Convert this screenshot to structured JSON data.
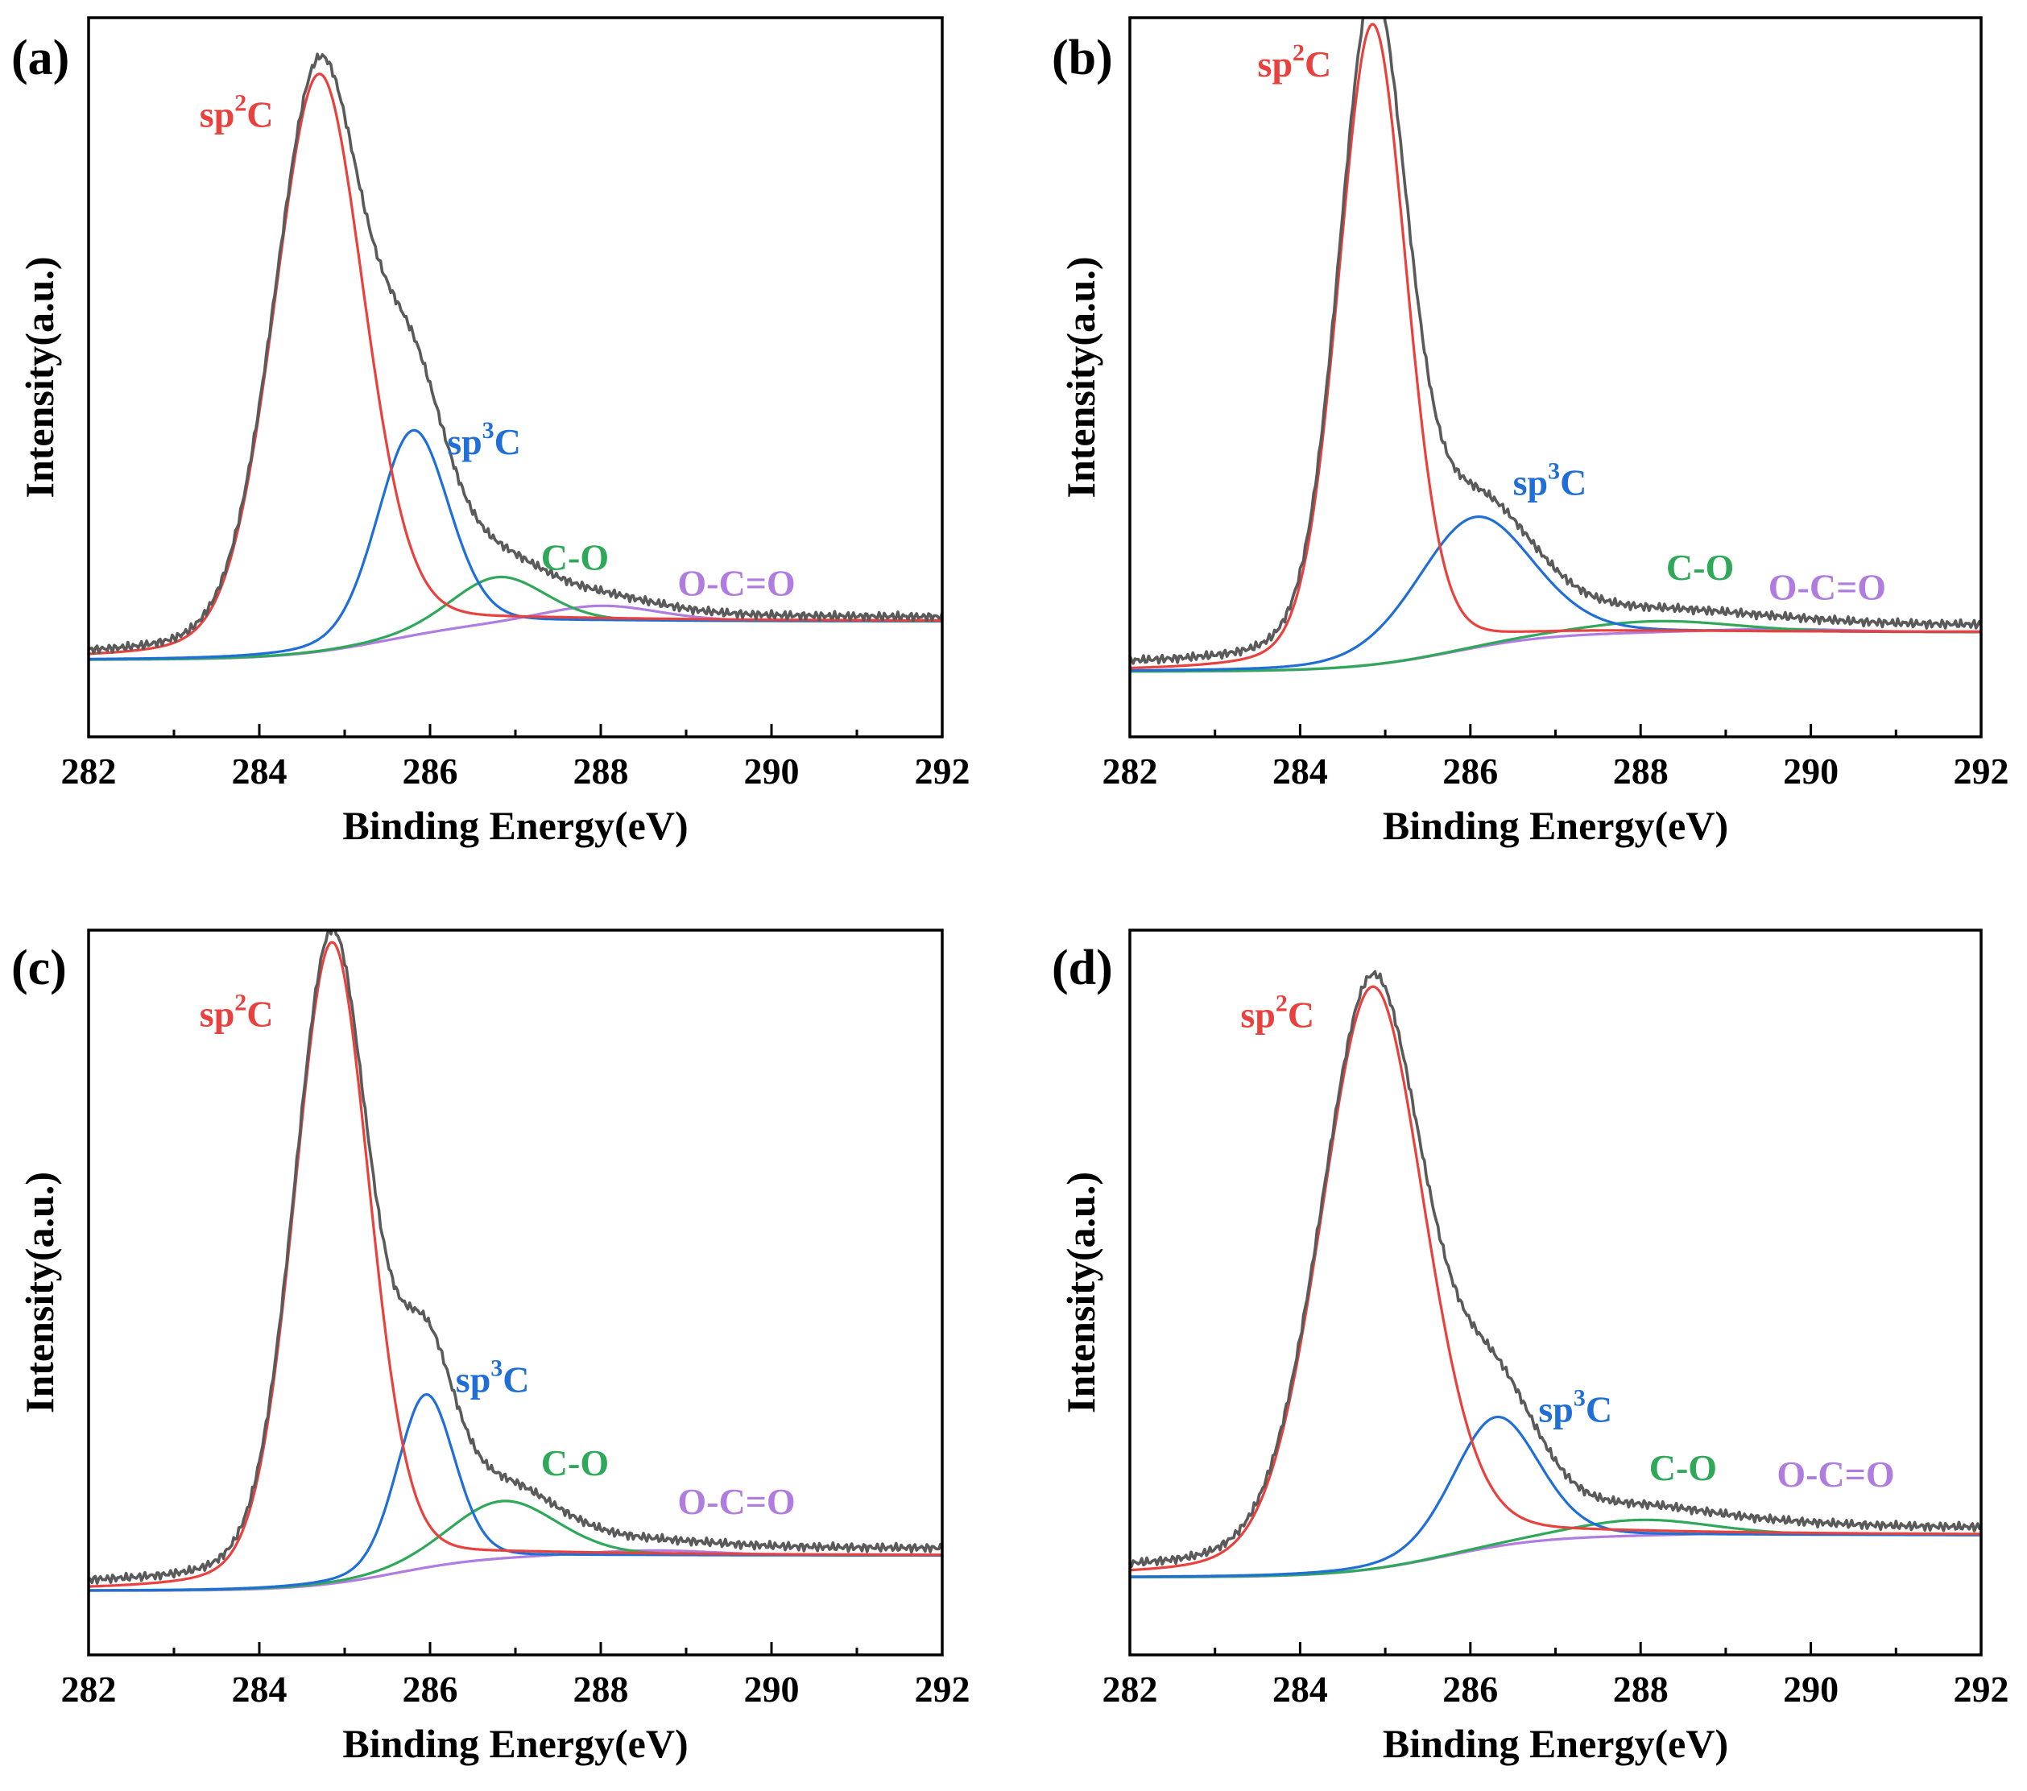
{
  "figure": {
    "colors": {
      "envelope": "#5a5a5a",
      "sp2": "#e8413e",
      "sp3": "#1f6fd6",
      "co": "#2fa85a",
      "oco": "#b07ce0"
    }
  },
  "chart_data": [
    {
      "panel_label": "(a)",
      "type": "line",
      "xlabel": "Binding Energy(eV)",
      "ylabel": "Intensity(a.u.)",
      "xlim": [
        282,
        292
      ],
      "ylim": [
        -0.12,
        1.0
      ],
      "xticks": [
        "282",
        "284",
        "286",
        "288",
        "290",
        "292"
      ],
      "peaks": [
        {
          "name": "sp2C",
          "label_main": "sp",
          "label_sup": "2",
          "label_tail": "C",
          "color": "#e8413e",
          "center": 284.7,
          "height": 0.9,
          "fwhm": 1.25,
          "label_at": [
            283.3,
            0.83
          ]
        },
        {
          "name": "sp3C",
          "label_main": "sp",
          "label_sup": "3",
          "label_tail": "C",
          "color": "#1f6fd6",
          "center": 285.8,
          "height": 0.32,
          "fwhm": 1.0,
          "label_at": [
            286.2,
            0.32
          ]
        },
        {
          "name": "C-O",
          "label_main": "C-O",
          "label_sup": "",
          "label_tail": "",
          "color": "#2fa85a",
          "center": 286.8,
          "height": 0.075,
          "fwhm": 1.3,
          "label_at": [
            287.3,
            0.14
          ]
        },
        {
          "name": "O-C=O",
          "label_main": "O-C=O",
          "label_sup": "",
          "label_tail": "",
          "color": "#b07ce0",
          "center": 288.0,
          "height": 0.025,
          "fwhm": 1.6,
          "label_at": [
            288.9,
            0.1
          ]
        }
      ],
      "background": {
        "low": 0.0,
        "high": 0.06,
        "center": 285.5,
        "width": 0.6
      },
      "envelope_tail": 0.005
    },
    {
      "panel_label": "(b)",
      "type": "line",
      "xlabel": "Binding Energy(eV)",
      "ylabel": "Intensity(a.u.)",
      "xlim": [
        282,
        292
      ],
      "ylim": [
        -0.1,
        1.0
      ],
      "xticks": [
        "282",
        "284",
        "286",
        "288",
        "290",
        "292"
      ],
      "peaks": [
        {
          "name": "sp2C",
          "label_main": "sp",
          "label_sup": "2",
          "label_tail": "C",
          "color": "#e8413e",
          "center": 284.85,
          "height": 0.98,
          "fwhm": 0.95,
          "label_at": [
            283.5,
            0.91
          ]
        },
        {
          "name": "sp3C",
          "label_main": "sp",
          "label_sup": "3",
          "label_tail": "C",
          "color": "#1f6fd6",
          "center": 286.05,
          "height": 0.2,
          "fwhm": 1.6,
          "label_at": [
            286.5,
            0.27
          ]
        },
        {
          "name": "C-O",
          "label_main": "C-O",
          "label_sup": "",
          "label_tail": "",
          "color": "#2fa85a",
          "center": 288.2,
          "height": 0.018,
          "fwhm": 2.2,
          "label_at": [
            288.3,
            0.14
          ]
        },
        {
          "name": "O-C=O",
          "label_main": "O-C=O",
          "label_sup": "",
          "label_tail": "",
          "color": "#b07ce0",
          "center": 289.6,
          "height": 0.005,
          "fwhm": 2.0,
          "label_at": [
            289.5,
            0.11
          ]
        }
      ],
      "background": {
        "low": 0.0,
        "high": 0.06,
        "center": 285.8,
        "width": 0.6
      },
      "envelope_tail": 0.01
    },
    {
      "panel_label": "(c)",
      "type": "line",
      "xlabel": "Binding Energy(eV)",
      "ylabel": "Intensity(a.u.)",
      "xlim": [
        282,
        292
      ],
      "ylim": [
        -0.1,
        1.03
      ],
      "xticks": [
        "282",
        "284",
        "286",
        "288",
        "290",
        "292"
      ],
      "peaks": [
        {
          "name": "sp2C",
          "label_main": "sp",
          "label_sup": "2",
          "label_tail": "C",
          "color": "#e8413e",
          "center": 284.85,
          "height": 1.0,
          "fwhm": 1.05,
          "label_at": [
            283.3,
            0.88
          ]
        },
        {
          "name": "sp3C",
          "label_main": "sp",
          "label_sup": "3",
          "label_tail": "C",
          "color": "#1f6fd6",
          "center": 285.95,
          "height": 0.27,
          "fwhm": 0.8,
          "label_at": [
            286.3,
            0.31
          ]
        },
        {
          "name": "C-O",
          "label_main": "C-O",
          "label_sup": "",
          "label_tail": "",
          "color": "#2fa85a",
          "center": 286.85,
          "height": 0.09,
          "fwhm": 1.5,
          "label_at": [
            287.3,
            0.18
          ]
        },
        {
          "name": "O-C=O",
          "label_main": "O-C=O",
          "label_sup": "",
          "label_tail": "",
          "color": "#b07ce0",
          "center": 288.6,
          "height": 0.008,
          "fwhm": 1.8,
          "label_at": [
            288.9,
            0.12
          ]
        }
      ],
      "background": {
        "low": 0.0,
        "high": 0.055,
        "center": 285.6,
        "width": 0.55
      },
      "envelope_tail": 0.01
    },
    {
      "panel_label": "(d)",
      "type": "line",
      "xlabel": "Binding Energy(eV)",
      "ylabel": "Intensity(a.u.)",
      "xlim": [
        282,
        292
      ],
      "ylim": [
        -0.12,
        1.0
      ],
      "xticks": [
        "282",
        "284",
        "286",
        "288",
        "290",
        "292"
      ],
      "peaks": [
        {
          "name": "sp2C",
          "label_main": "sp",
          "label_sup": "2",
          "label_tail": "C",
          "color": "#e8413e",
          "center": 284.85,
          "height": 0.9,
          "fwhm": 1.45,
          "label_at": [
            283.3,
            0.85
          ]
        },
        {
          "name": "sp3C",
          "label_main": "sp",
          "label_sup": "3",
          "label_tail": "C",
          "color": "#1f6fd6",
          "center": 286.3,
          "height": 0.2,
          "fwhm": 1.2,
          "label_at": [
            286.8,
            0.24
          ]
        },
        {
          "name": "C-O",
          "label_main": "C-O",
          "label_sup": "",
          "label_tail": "",
          "color": "#2fa85a",
          "center": 288.0,
          "height": 0.025,
          "fwhm": 2.0,
          "label_at": [
            288.1,
            0.15
          ]
        },
        {
          "name": "O-C=O",
          "label_main": "O-C=O",
          "label_sup": "",
          "label_tail": "",
          "color": "#b07ce0",
          "center": 289.6,
          "height": 0.004,
          "fwhm": 2.0,
          "label_at": [
            289.6,
            0.14
          ]
        }
      ],
      "background": {
        "low": 0.0,
        "high": 0.065,
        "center": 285.7,
        "width": 0.6
      },
      "envelope_tail": 0.01
    }
  ]
}
